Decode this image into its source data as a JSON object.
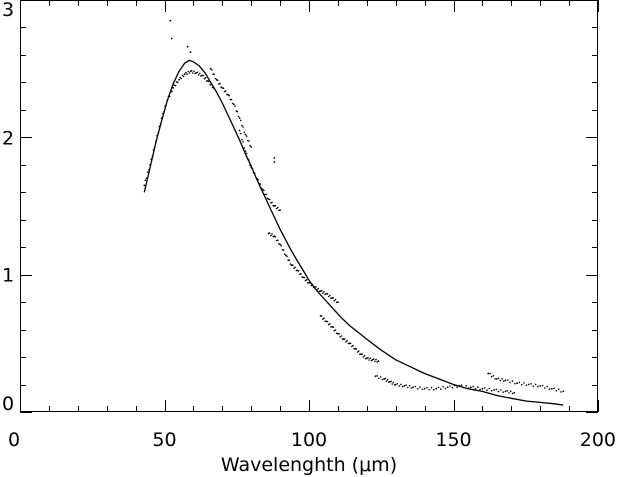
{
  "chart_data": {
    "type": "scatter",
    "title": "",
    "xlabel": "Wavelenghth (μm)",
    "ylabel": "",
    "xlim": [
      0,
      200
    ],
    "ylim": [
      0,
      3
    ],
    "x_ticks": [
      0,
      50,
      100,
      150,
      200
    ],
    "y_ticks": [
      0,
      1,
      2,
      3
    ],
    "grid": false,
    "series": [
      {
        "kind": "line",
        "color": "#000000",
        "points": [
          [
            43,
            1.6
          ],
          [
            45,
            1.78
          ],
          [
            47,
            1.96
          ],
          [
            49,
            2.12
          ],
          [
            51,
            2.27
          ],
          [
            53,
            2.39
          ],
          [
            55,
            2.48
          ],
          [
            57,
            2.54
          ],
          [
            58.5,
            2.56
          ],
          [
            60,
            2.55
          ],
          [
            62,
            2.52
          ],
          [
            64,
            2.47
          ],
          [
            66,
            2.4
          ],
          [
            68,
            2.33
          ],
          [
            70,
            2.25
          ],
          [
            72,
            2.16
          ],
          [
            74,
            2.07
          ],
          [
            76,
            1.98
          ],
          [
            78,
            1.88
          ],
          [
            80,
            1.79
          ],
          [
            82,
            1.69
          ],
          [
            84,
            1.6
          ],
          [
            86,
            1.51
          ],
          [
            88,
            1.42
          ],
          [
            90,
            1.33
          ],
          [
            92,
            1.25
          ],
          [
            94,
            1.17
          ],
          [
            96,
            1.1
          ],
          [
            98,
            1.03
          ],
          [
            100,
            0.96
          ],
          [
            102,
            0.9
          ],
          [
            105,
            0.83
          ],
          [
            108,
            0.76
          ],
          [
            111,
            0.69
          ],
          [
            114,
            0.63
          ],
          [
            117,
            0.58
          ],
          [
            120,
            0.53
          ],
          [
            125,
            0.45
          ],
          [
            130,
            0.38
          ],
          [
            135,
            0.33
          ],
          [
            140,
            0.28
          ],
          [
            145,
            0.24
          ],
          [
            150,
            0.2
          ],
          [
            155,
            0.17
          ],
          [
            160,
            0.15
          ],
          [
            165,
            0.12
          ],
          [
            170,
            0.1
          ],
          [
            175,
            0.08
          ],
          [
            180,
            0.07
          ],
          [
            185,
            0.06
          ],
          [
            188,
            0.05
          ]
        ]
      },
      {
        "kind": "points",
        "color": "#000000",
        "segments": [
          [
            [
              43,
              1.65
            ],
            [
              45,
              1.8
            ],
            [
              47,
              1.97
            ],
            [
              49,
              2.14
            ],
            [
              51,
              2.27
            ],
            [
              53,
              2.36
            ],
            [
              55,
              2.42
            ],
            [
              57,
              2.46
            ],
            [
              59,
              2.48
            ],
            [
              61,
              2.47
            ],
            [
              63,
              2.45
            ],
            [
              65,
              2.41
            ],
            [
              67,
              2.36
            ]
          ],
          [
            [
              66,
              2.5
            ],
            [
              68,
              2.42
            ],
            [
              70,
              2.36
            ],
            [
              72,
              2.31
            ],
            [
              74,
              2.24
            ],
            [
              76,
              2.14
            ],
            [
              78,
              2.02
            ],
            [
              80,
              1.93
            ]
          ],
          [
            [
              76,
              2.05
            ],
            [
              78,
              1.9
            ],
            [
              80,
              1.78
            ],
            [
              82,
              1.7
            ],
            [
              84,
              1.62
            ],
            [
              86,
              1.55
            ],
            [
              88,
              1.5
            ],
            [
              90,
              1.47
            ]
          ],
          [
            [
              86,
              1.3
            ],
            [
              88,
              1.28
            ],
            [
              90,
              1.22
            ],
            [
              92,
              1.14
            ],
            [
              94,
              1.07
            ],
            [
              96,
              1.03
            ],
            [
              98,
              0.98
            ],
            [
              100,
              0.94
            ],
            [
              102,
              0.91
            ],
            [
              104,
              0.88
            ],
            [
              106,
              0.86
            ],
            [
              108,
              0.83
            ],
            [
              110,
              0.8
            ]
          ],
          [
            [
              104,
              0.7
            ],
            [
              106,
              0.66
            ],
            [
              108,
              0.62
            ],
            [
              110,
              0.57
            ],
            [
              112,
              0.53
            ],
            [
              114,
              0.5
            ],
            [
              116,
              0.46
            ],
            [
              118,
              0.42
            ],
            [
              120,
              0.39
            ],
            [
              122,
              0.38
            ],
            [
              124,
              0.37
            ]
          ],
          [
            [
              123,
              0.26
            ],
            [
              126,
              0.24
            ],
            [
              128,
              0.22
            ],
            [
              130,
              0.2
            ],
            [
              133,
              0.19
            ],
            [
              136,
              0.18
            ],
            [
              140,
              0.17
            ],
            [
              144,
              0.17
            ],
            [
              148,
              0.18
            ],
            [
              152,
              0.19
            ],
            [
              156,
              0.18
            ],
            [
              160,
              0.17
            ],
            [
              164,
              0.16
            ],
            [
              168,
              0.15
            ],
            [
              171,
              0.14
            ]
          ],
          [
            [
              162,
              0.28
            ],
            [
              165,
              0.24
            ],
            [
              168,
              0.23
            ],
            [
              172,
              0.21
            ],
            [
              176,
              0.2
            ],
            [
              180,
              0.19
            ],
            [
              184,
              0.17
            ],
            [
              188,
              0.15
            ]
          ],
          [
            [
              52,
              2.85
            ],
            [
              52.5,
              2.72
            ],
            [
              58,
              2.66
            ],
            [
              59,
              2.62
            ],
            [
              88,
              1.85
            ],
            [
              88,
              1.82
            ]
          ]
        ]
      }
    ]
  }
}
